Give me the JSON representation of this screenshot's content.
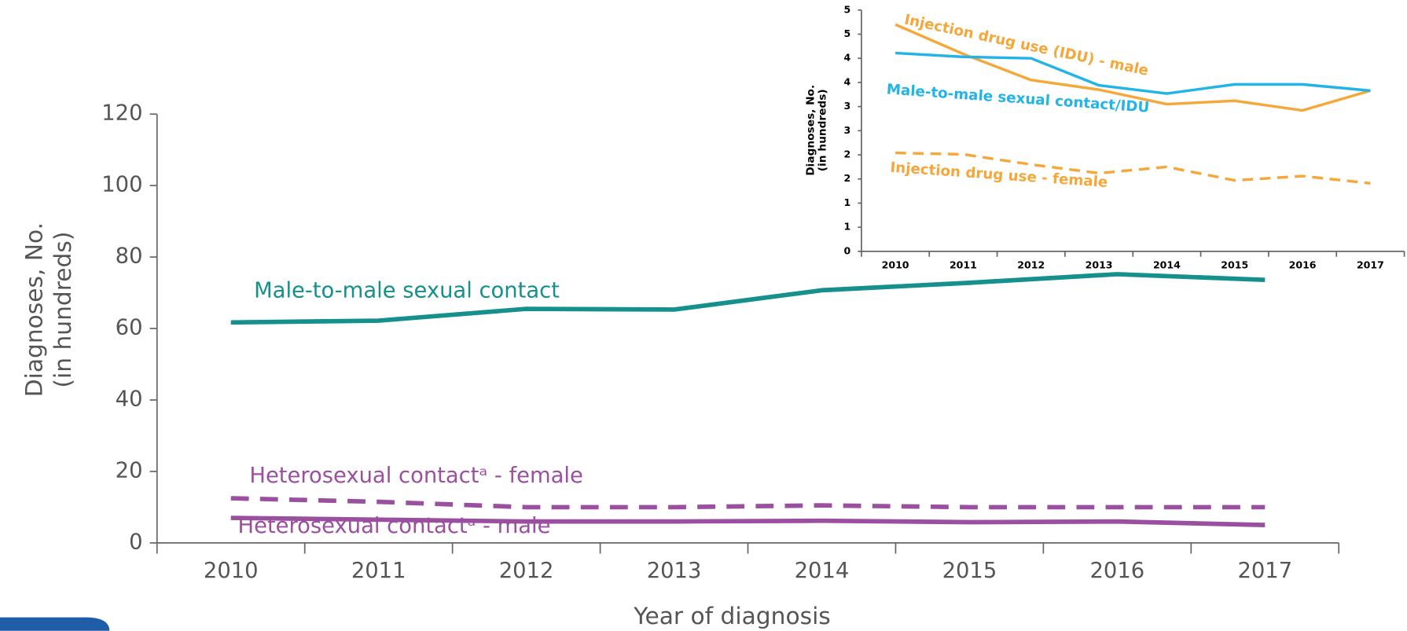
{
  "chart_data": [
    {
      "type": "line",
      "ylabel": [
        "Diagnoses, No.",
        "(in hundreds)"
      ],
      "xlabel": "Year of diagnosis",
      "categories": [
        "2010",
        "2011",
        "2012",
        "2013",
        "2014",
        "2015",
        "2016",
        "2017"
      ],
      "ylim": [
        0,
        120
      ],
      "yticks": [
        0,
        20,
        40,
        60,
        80,
        100,
        120
      ],
      "series": [
        {
          "name": "Male-to-male sexual contact",
          "color": "#15908c",
          "dash": false,
          "values": [
            61.7,
            62.2,
            65.5,
            65.3,
            70.7,
            72.8,
            75.2,
            73.6
          ]
        },
        {
          "name": "Heterosexual contactᵃ - female",
          "color": "#9b4f9f",
          "dash": true,
          "values": [
            12.5,
            11.5,
            10,
            10,
            10.5,
            10,
            10,
            10
          ]
        },
        {
          "name": "Heterosexual contactᵃ - male",
          "color": "#9b4f9f",
          "dash": false,
          "values": [
            7,
            6.5,
            6,
            6,
            6.2,
            5.8,
            6,
            5
          ]
        }
      ]
    },
    {
      "type": "line",
      "ylabel": [
        "Diagnoses, No.",
        "(in hundreds)"
      ],
      "categories": [
        "2010",
        "2011",
        "2012",
        "2013",
        "2014",
        "2015",
        "2016",
        "2017"
      ],
      "ylim": [
        0,
        5
      ],
      "yticks": [
        0,
        {
          "value": 0.5,
          "label": "1"
        },
        1,
        {
          "value": 1.5,
          "label": "2"
        },
        2,
        {
          "value": 2.5,
          "label": "3"
        },
        3,
        {
          "value": 3.5,
          "label": "4"
        },
        4,
        {
          "value": 4.5,
          "label": "5"
        },
        5
      ],
      "series": [
        {
          "name": "Injection drug use (IDU) - male",
          "color": "#f5a73a",
          "dash": false,
          "values": [
            4.7,
            4.09,
            3.55,
            3.35,
            3.05,
            3.12,
            2.92,
            3.33
          ]
        },
        {
          "name": "Male-to-male sexual contact/IDU",
          "color": "#22b4e8",
          "dash": false,
          "values": [
            4.11,
            4.03,
            4.0,
            3.44,
            3.27,
            3.46,
            3.46,
            3.33
          ]
        },
        {
          "name": "Injection drug use - female",
          "color": "#f5a73a",
          "dash": true,
          "values": [
            2.04,
            2.01,
            1.8,
            1.62,
            1.75,
            1.47,
            1.56,
            1.41
          ]
        }
      ]
    }
  ]
}
